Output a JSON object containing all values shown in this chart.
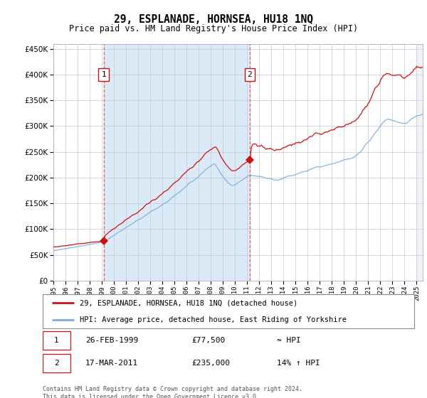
{
  "title": "29, ESPLANADE, HORNSEA, HU18 1NQ",
  "subtitle": "Price paid vs. HM Land Registry's House Price Index (HPI)",
  "legend_line1": "29, ESPLANADE, HORNSEA, HU18 1NQ (detached house)",
  "legend_line2": "HPI: Average price, detached house, East Riding of Yorkshire",
  "ann1_label": "1",
  "ann1_date": "26-FEB-1999",
  "ann1_price": "£77,500",
  "ann1_hpi": "≈ HPI",
  "ann2_label": "2",
  "ann2_date": "17-MAR-2011",
  "ann2_price": "£235,000",
  "ann2_hpi": "14% ↑ HPI",
  "sale1_price": 77500,
  "sale1_year": 1999.15,
  "sale2_price": 235000,
  "sale2_year": 2011.21,
  "hpi_color": "#7aaddc",
  "prop_color": "#cc1111",
  "marker_color": "#cc1111",
  "vline_color": "#dd4444",
  "shade_color": "#daeaf7",
  "grid_color": "#c8c8d8",
  "ylim_max": 460000,
  "xlim_start": 1995.0,
  "xlim_end": 2025.5,
  "footer": "Contains HM Land Registry data © Crown copyright and database right 2024.\nThis data is licensed under the Open Government Licence v3.0."
}
